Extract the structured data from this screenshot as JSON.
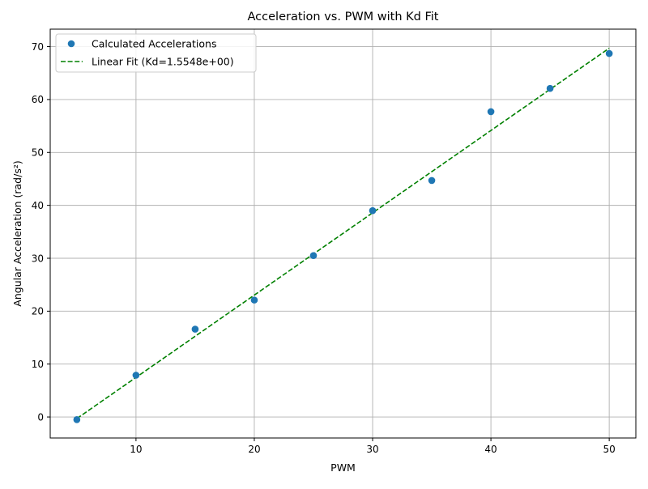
{
  "chart_data": {
    "type": "scatter",
    "title": "Acceleration vs. PWM with Kd Fit",
    "xlabel": "PWM",
    "ylabel": "Angular Acceleration (rad/s²)",
    "xlim": [
      2.75,
      52.25
    ],
    "ylim": [
      -3.97,
      73.3
    ],
    "xticks": [
      10,
      20,
      30,
      40,
      50
    ],
    "yticks": [
      0,
      10,
      20,
      30,
      40,
      50,
      60,
      70
    ],
    "grid": true,
    "legend_position": "top-left",
    "series": [
      {
        "name": "Calculated Accelerations",
        "kind": "markers",
        "color": "#1f77b4",
        "x": [
          5,
          10,
          15,
          20,
          25,
          30,
          35,
          40,
          45,
          50
        ],
        "y": [
          -0.5,
          7.9,
          16.6,
          22.1,
          30.5,
          39.0,
          44.7,
          57.7,
          62.1,
          68.7
        ]
      },
      {
        "name": "Linear Fit (Kd=1.5548e+00)",
        "kind": "dashed-line",
        "color": "#008000",
        "x": [
          5,
          50
        ],
        "y": [
          -0.3,
          69.7
        ]
      }
    ]
  }
}
